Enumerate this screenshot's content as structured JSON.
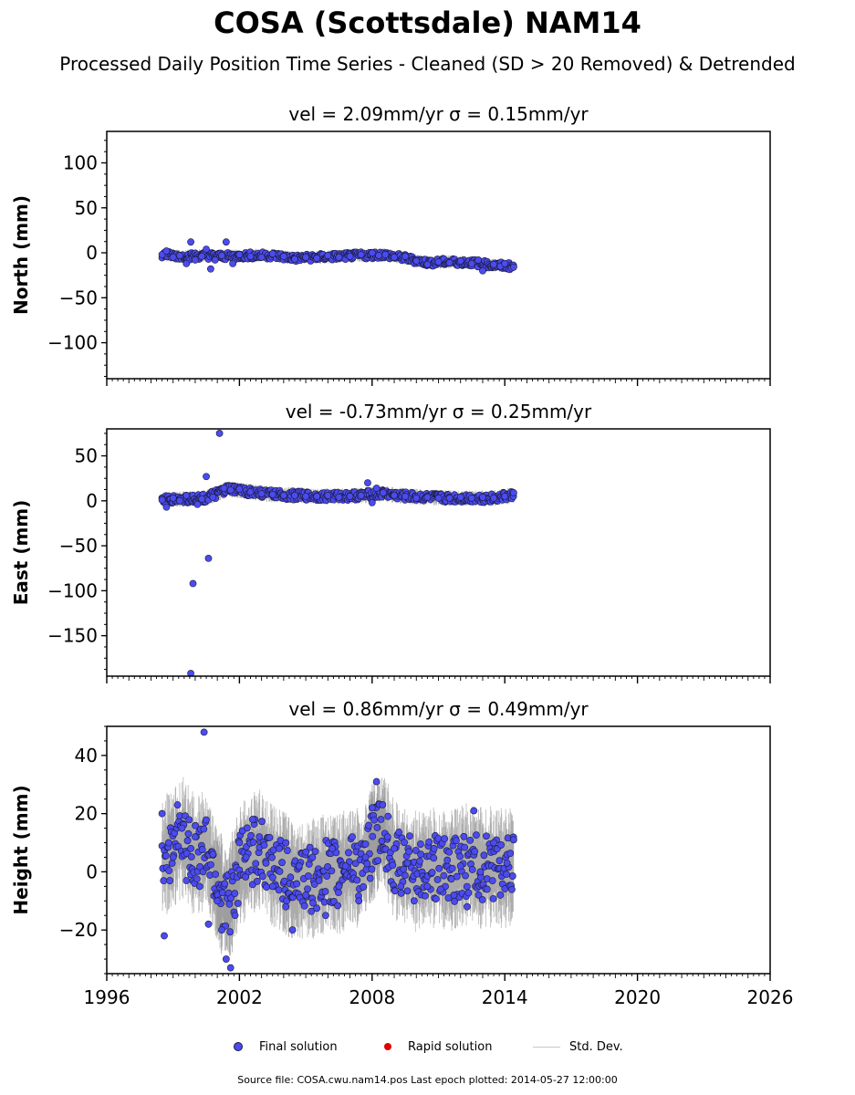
{
  "title": "COSA (Scottsdale) NAM14",
  "subtitle": "Processed Daily Position Time Series - Cleaned (SD > 20 Removed) & Detrended",
  "legend": {
    "final": "Final solution",
    "rapid": "Rapid solution",
    "std": "Std. Dev."
  },
  "footer": "Source file: COSA.cwu.nam14.pos  Last epoch plotted: 2014-05-27 12:00:00",
  "colors": {
    "final": "#4b4bf0",
    "final_edge": "#1a1a3a",
    "rapid": "#e00000",
    "std": "#c8c8c8",
    "axis": "#000000"
  },
  "chart_data": [
    {
      "type": "scatter",
      "panel": "north",
      "title": "vel = 2.09mm/yr   σ = 0.15mm/yr",
      "ylabel": "North (mm)",
      "xlim": [
        1996,
        2026
      ],
      "ylim": [
        -140,
        135
      ],
      "yticks": [
        -100,
        -50,
        0,
        50,
        100
      ],
      "yticklabels": [
        "−100",
        "−50",
        "0",
        "50",
        "100"
      ],
      "xticks": [
        1996,
        2002,
        2008,
        2014,
        2020,
        2026
      ],
      "xticklabels": [],
      "series": [
        {
          "values": [
            [
              1998.5,
              -2
            ],
            [
              1998.7,
              2
            ],
            [
              1999.0,
              -5
            ],
            [
              1999.3,
              -3
            ],
            [
              1999.6,
              -12
            ],
            [
              1999.8,
              12
            ],
            [
              2000.0,
              -8
            ],
            [
              2000.3,
              -4
            ],
            [
              2000.5,
              4
            ],
            [
              2000.7,
              -18
            ],
            [
              2000.9,
              -8
            ],
            [
              2001.2,
              -3
            ],
            [
              2001.4,
              12
            ],
            [
              2001.7,
              -12
            ],
            [
              2002.0,
              -2
            ],
            [
              2002.5,
              -4
            ],
            [
              2003.0,
              -5
            ],
            [
              2003.5,
              -1
            ],
            [
              2004.0,
              -4
            ],
            [
              2004.5,
              -7
            ],
            [
              2005.0,
              -5
            ],
            [
              2005.5,
              -6
            ],
            [
              2006.0,
              -3
            ],
            [
              2006.5,
              -5
            ],
            [
              2007.0,
              -4
            ],
            [
              2007.5,
              -2
            ],
            [
              2008.0,
              0
            ],
            [
              2008.3,
              -3
            ],
            [
              2008.6,
              -2
            ],
            [
              2009.0,
              -5
            ],
            [
              2009.5,
              -4
            ],
            [
              2010.0,
              -9
            ],
            [
              2010.5,
              -13
            ],
            [
              2011.0,
              -10
            ],
            [
              2011.5,
              -11
            ],
            [
              2012.0,
              -9
            ],
            [
              2012.5,
              -12
            ],
            [
              2012.8,
              -8
            ],
            [
              2013.0,
              -20
            ],
            [
              2013.5,
              -13
            ],
            [
              2013.8,
              -15
            ],
            [
              2014.0,
              -12
            ],
            [
              2014.3,
              -17
            ],
            [
              2014.4,
              -16
            ]
          ]
        }
      ],
      "band": [
        [
          1998.5,
          -2
        ],
        [
          1999.5,
          -4
        ],
        [
          2000.5,
          -3
        ],
        [
          2001.5,
          -4
        ],
        [
          2002.5,
          -3
        ],
        [
          2003.5,
          -3
        ],
        [
          2004.5,
          -6
        ],
        [
          2005.5,
          -5
        ],
        [
          2006.5,
          -4
        ],
        [
          2007.5,
          -3
        ],
        [
          2008.5,
          -2
        ],
        [
          2009.5,
          -6
        ],
        [
          2010.5,
          -11
        ],
        [
          2011.5,
          -10
        ],
        [
          2012.5,
          -11
        ],
        [
          2013.5,
          -14
        ],
        [
          2014.4,
          -15
        ]
      ]
    },
    {
      "type": "scatter",
      "panel": "east",
      "title": "vel = -0.73mm/yr   σ = 0.25mm/yr",
      "ylabel": "East (mm)",
      "xlim": [
        1996,
        2026
      ],
      "ylim": [
        -195,
        80
      ],
      "yticks": [
        -150,
        -100,
        -50,
        0,
        50
      ],
      "yticklabels": [
        "−150",
        "−100",
        "−50",
        "0",
        "50"
      ],
      "xticks": [
        1996,
        2002,
        2008,
        2014,
        2020,
        2026
      ],
      "xticklabels": [],
      "series": [
        {
          "values": [
            [
              1998.5,
              1
            ],
            [
              1998.7,
              -7
            ],
            [
              1999.0,
              3
            ],
            [
              1999.3,
              0
            ],
            [
              1999.6,
              6
            ],
            [
              1999.8,
              -192
            ],
            [
              1999.9,
              -92
            ],
            [
              2000.1,
              -4
            ],
            [
              2000.3,
              2
            ],
            [
              2000.5,
              27
            ],
            [
              2000.6,
              -64
            ],
            [
              2000.8,
              4
            ],
            [
              2001.1,
              75
            ],
            [
              2001.3,
              14
            ],
            [
              2001.6,
              12
            ],
            [
              2002.0,
              13
            ],
            [
              2002.5,
              10
            ],
            [
              2003.0,
              8
            ],
            [
              2003.5,
              7
            ],
            [
              2004.0,
              6
            ],
            [
              2004.5,
              6
            ],
            [
              2005.0,
              5
            ],
            [
              2005.5,
              5
            ],
            [
              2006.0,
              6
            ],
            [
              2006.5,
              4
            ],
            [
              2007.0,
              5
            ],
            [
              2007.5,
              6
            ],
            [
              2007.8,
              20
            ],
            [
              2008.0,
              -2
            ],
            [
              2008.2,
              14
            ],
            [
              2008.5,
              9
            ],
            [
              2009.0,
              6
            ],
            [
              2009.5,
              5
            ],
            [
              2010.0,
              3
            ],
            [
              2010.5,
              4
            ],
            [
              2011.0,
              3
            ],
            [
              2011.5,
              3
            ],
            [
              2012.0,
              4
            ],
            [
              2012.5,
              3
            ],
            [
              2013.0,
              4
            ],
            [
              2013.5,
              3
            ],
            [
              2014.0,
              5
            ],
            [
              2014.4,
              9
            ]
          ]
        }
      ],
      "band": [
        [
          1998.5,
          1
        ],
        [
          1999.5,
          2
        ],
        [
          2000.5,
          3
        ],
        [
          2001.5,
          13
        ],
        [
          2002.5,
          10
        ],
        [
          2003.5,
          7
        ],
        [
          2004.5,
          6
        ],
        [
          2005.5,
          5
        ],
        [
          2006.5,
          5
        ],
        [
          2007.5,
          6
        ],
        [
          2008.5,
          8
        ],
        [
          2009.5,
          5
        ],
        [
          2010.5,
          4
        ],
        [
          2011.5,
          3
        ],
        [
          2012.5,
          3
        ],
        [
          2013.5,
          3
        ],
        [
          2014.4,
          6
        ]
      ]
    },
    {
      "type": "scatter",
      "panel": "height",
      "title": "vel = 0.86mm/yr   σ = 0.49mm/yr",
      "ylabel": "Height (mm)",
      "xlim": [
        1996,
        2026
      ],
      "ylim": [
        -35,
        50
      ],
      "yticks": [
        -20,
        0,
        20,
        40
      ],
      "yticklabels": [
        "−20",
        "0",
        "20",
        "40"
      ],
      "xticks": [
        1996,
        2002,
        2008,
        2014,
        2020,
        2026
      ],
      "xticklabels": [
        "1996",
        "2002",
        "2008",
        "2014",
        "2020",
        "2026"
      ],
      "series": [
        {
          "values": [
            [
              1998.5,
              20
            ],
            [
              1998.6,
              -22
            ],
            [
              1998.8,
              10
            ],
            [
              1999.0,
              5
            ],
            [
              1999.2,
              23
            ],
            [
              1999.4,
              15
            ],
            [
              1999.6,
              -3
            ],
            [
              1999.8,
              8
            ],
            [
              2000.0,
              12
            ],
            [
              2000.2,
              -5
            ],
            [
              2000.4,
              48
            ],
            [
              2000.6,
              -18
            ],
            [
              2000.8,
              6
            ],
            [
              2001.0,
              -10
            ],
            [
              2001.2,
              -20
            ],
            [
              2001.4,
              -30
            ],
            [
              2001.6,
              -33
            ],
            [
              2001.8,
              -15
            ],
            [
              2002.0,
              10
            ],
            [
              2002.3,
              5
            ],
            [
              2002.6,
              18
            ],
            [
              2002.9,
              12
            ],
            [
              2003.2,
              3
            ],
            [
              2003.5,
              -5
            ],
            [
              2003.8,
              8
            ],
            [
              2004.1,
              -12
            ],
            [
              2004.4,
              -20
            ],
            [
              2004.7,
              2
            ],
            [
              2005.0,
              -8
            ],
            [
              2005.3,
              5
            ],
            [
              2005.6,
              -3
            ],
            [
              2005.9,
              -15
            ],
            [
              2006.2,
              8
            ],
            [
              2006.5,
              -5
            ],
            [
              2006.8,
              2
            ],
            [
              2007.1,
              12
            ],
            [
              2007.4,
              -10
            ],
            [
              2007.7,
              5
            ],
            [
              2008.0,
              22
            ],
            [
              2008.2,
              31
            ],
            [
              2008.4,
              18
            ],
            [
              2008.7,
              12
            ],
            [
              2009.0,
              8
            ],
            [
              2009.3,
              -5
            ],
            [
              2009.6,
              3
            ],
            [
              2009.9,
              -10
            ],
            [
              2010.2,
              6
            ],
            [
              2010.5,
              -5
            ],
            [
              2010.8,
              8
            ],
            [
              2011.1,
              -6
            ],
            [
              2011.4,
              4
            ],
            [
              2011.7,
              -8
            ],
            [
              2012.0,
              2
            ],
            [
              2012.3,
              -12
            ],
            [
              2012.6,
              21
            ],
            [
              2012.9,
              0
            ],
            [
              2013.2,
              -6
            ],
            [
              2013.5,
              10
            ],
            [
              2013.8,
              -8
            ],
            [
              2014.1,
              3
            ],
            [
              2014.4,
              11
            ]
          ]
        }
      ],
      "band": [
        [
          1998.5,
          5
        ],
        [
          1999.0,
          8
        ],
        [
          1999.5,
          12
        ],
        [
          2000.0,
          5
        ],
        [
          2000.5,
          8
        ],
        [
          2001.0,
          -5
        ],
        [
          2001.5,
          -12
        ],
        [
          2002.0,
          2
        ],
        [
          2002.5,
          6
        ],
        [
          2003.0,
          8
        ],
        [
          2003.5,
          2
        ],
        [
          2004.0,
          0
        ],
        [
          2004.5,
          -4
        ],
        [
          2005.0,
          -3
        ],
        [
          2005.5,
          -2
        ],
        [
          2006.0,
          0
        ],
        [
          2006.5,
          -1
        ],
        [
          2007.0,
          2
        ],
        [
          2007.5,
          1
        ],
        [
          2008.0,
          10
        ],
        [
          2008.5,
          15
        ],
        [
          2009.0,
          4
        ],
        [
          2009.5,
          2
        ],
        [
          2010.0,
          0
        ],
        [
          2010.5,
          2
        ],
        [
          2011.0,
          1
        ],
        [
          2011.5,
          0
        ],
        [
          2012.0,
          2
        ],
        [
          2012.5,
          3
        ],
        [
          2013.0,
          1
        ],
        [
          2013.5,
          2
        ],
        [
          2014.0,
          1
        ],
        [
          2014.4,
          2
        ]
      ]
    }
  ]
}
